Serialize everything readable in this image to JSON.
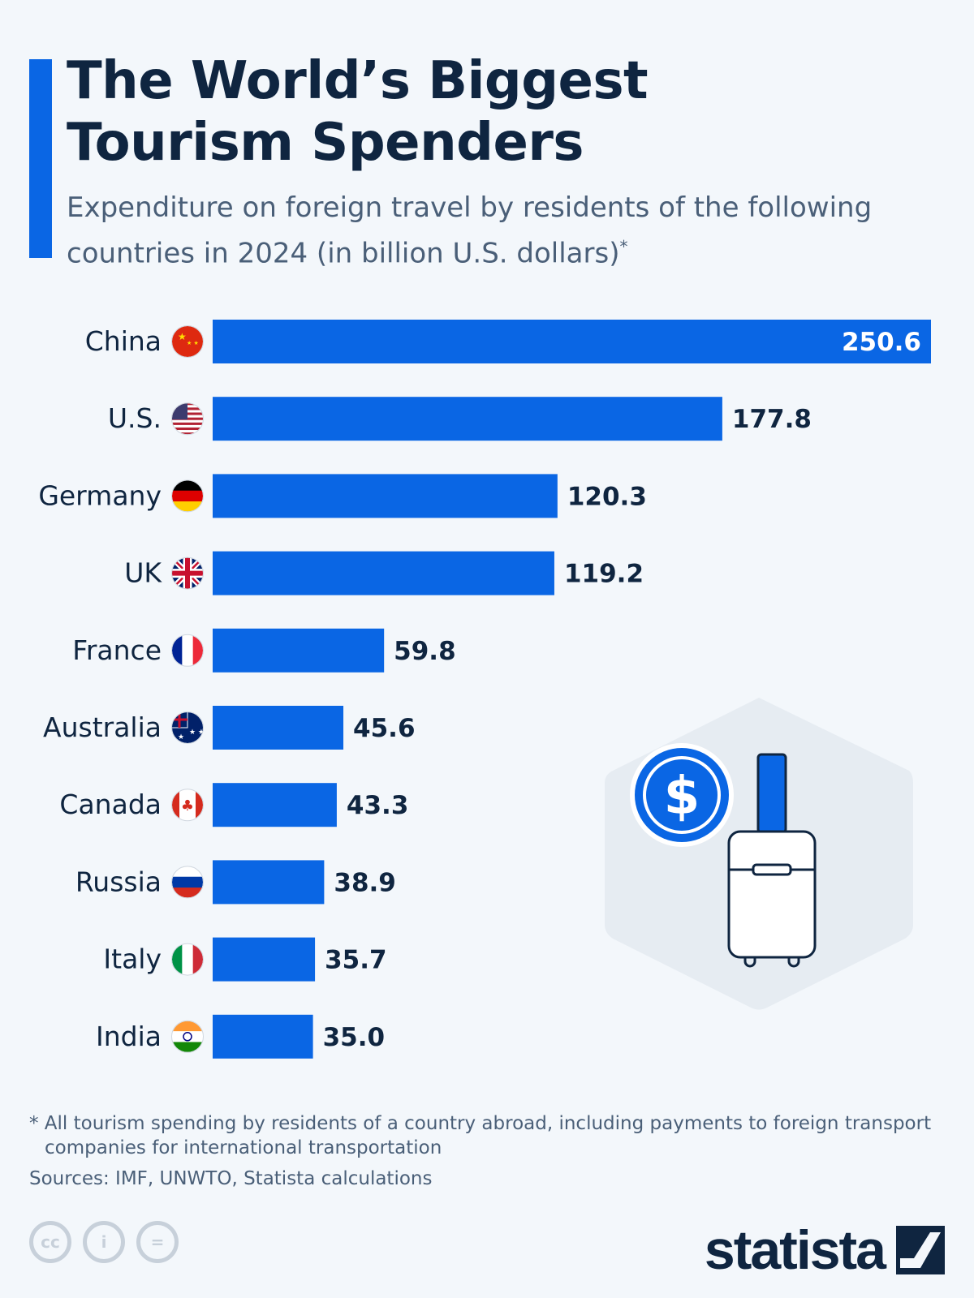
{
  "title_line1": "The World’s Biggest",
  "title_line2": "Tourism Spenders",
  "subtitle": "Expenditure on foreign travel by residents of the following countries in 2024 (in billion U.S. dollars)",
  "subtitle_mark": "*",
  "footnote": "* All tourism spending by residents of a country abroad, including payments to foreign transport companies for international transportation",
  "sources": "Sources: IMF, UNWTO, Statista calculations",
  "logo": "statista",
  "license_icons": [
    "cc",
    "by",
    "nd"
  ],
  "colors": {
    "bar": "#0a66e4",
    "text": "#0f2540",
    "background": "#f3f7fb"
  },
  "chart_data": {
    "type": "bar",
    "orientation": "horizontal",
    "categories": [
      "China",
      "U.S.",
      "Germany",
      "UK",
      "France",
      "Australia",
      "Canada",
      "Russia",
      "Italy",
      "India"
    ],
    "values": [
      250.6,
      177.8,
      120.3,
      119.2,
      59.8,
      45.6,
      43.3,
      38.9,
      35.7,
      35.0
    ],
    "value_labels": [
      "250.6",
      "177.8",
      "120.3",
      "119.2",
      "59.8",
      "45.6",
      "43.3",
      "38.9",
      "35.7",
      "35.0"
    ],
    "flags": [
      "china",
      "usa",
      "germany",
      "uk",
      "france",
      "australia",
      "canada",
      "russia",
      "italy",
      "india"
    ],
    "xlim": [
      0,
      250.6
    ],
    "grid": false
  }
}
